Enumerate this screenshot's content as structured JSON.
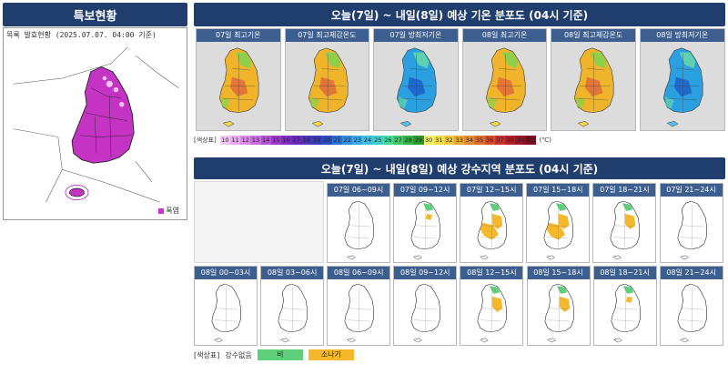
{
  "left_panel": {
    "title": "특보현황",
    "issue_time": "목록 발효현황 (2025.07.07. 04:00 기준)",
    "legend_label": "폭염",
    "legend_color": "#cc33cc"
  },
  "temp_section": {
    "title": "오늘(7일) ~ 내일(8일) 예상 기온 분포도 (04시 기준)",
    "maps": [
      {
        "label": "07일 최고기온",
        "palette": "warm"
      },
      {
        "label": "07일 최고체감온도",
        "palette": "warm"
      },
      {
        "label": "07일 방최저기온",
        "palette": "cool"
      },
      {
        "label": "08일 최고기온",
        "palette": "warm"
      },
      {
        "label": "08일 최고체감온도",
        "palette": "warm"
      },
      {
        "label": "08일 방최저기온",
        "palette": "cool"
      }
    ],
    "scale_caption": "[색상표]",
    "scale_values": [
      "10",
      "11",
      "12",
      "13",
      "14",
      "15",
      "16",
      "17",
      "18",
      "19",
      "20",
      "21",
      "22",
      "23",
      "24",
      "25",
      "26",
      "27",
      "28",
      "29",
      "30",
      "31",
      "32",
      "33",
      "34",
      "35",
      "36",
      "37",
      "38",
      "39",
      "40"
    ],
    "scale_colors": [
      "#f2c6f2",
      "#e8a8ec",
      "#d98ae5",
      "#c86bde",
      "#b44fd6",
      "#9a38c9",
      "#7f2ec0",
      "#6a2ab8",
      "#4f33b5",
      "#3a3db8",
      "#2c4bc2",
      "#2b6fd4",
      "#2f8ee0",
      "#38a7e6",
      "#3dbfe5",
      "#3fd0c8",
      "#47d89e",
      "#3fc86a",
      "#34b044",
      "#2b9a2f",
      "#f6f06a",
      "#f5df45",
      "#f1c83a",
      "#eaa934",
      "#e48a30",
      "#dd6a2e",
      "#d44a2d",
      "#c7302e",
      "#b21f2a",
      "#981527",
      "#7a0c22"
    ],
    "scale_unit": "(℃)"
  },
  "rain_section": {
    "title": "오늘(7일) ~ 내일(8일) 예상 강수지역 분포도 (04시 기준)",
    "row1": [
      {
        "label": "07일 06~09시",
        "level": 0
      },
      {
        "label": "07일 09~12시",
        "level": 1
      },
      {
        "label": "07일 12~15시",
        "level": 3
      },
      {
        "label": "07일 15~18시",
        "level": 3
      },
      {
        "label": "07일 18~21시",
        "level": 2
      },
      {
        "label": "07일 21~24시",
        "level": 0
      }
    ],
    "row2": [
      {
        "label": "08일 00~03시",
        "level": 0
      },
      {
        "label": "08일 03~06시",
        "level": 0
      },
      {
        "label": "08일 06~09시",
        "level": 0
      },
      {
        "label": "08일 09~12시",
        "level": 0
      },
      {
        "label": "08일 12~15시",
        "level": 2
      },
      {
        "label": "08일 15~18시",
        "level": 2
      },
      {
        "label": "08일 18~21시",
        "level": 1
      },
      {
        "label": "08일 21~24시",
        "level": 0
      }
    ],
    "legend_caption": "[색상표]",
    "legend_sub": "강수없음",
    "legend_rain": "비",
    "legend_shower": "소나기",
    "rain_color": "#5fd07a",
    "shower_color": "#f5b82a"
  }
}
